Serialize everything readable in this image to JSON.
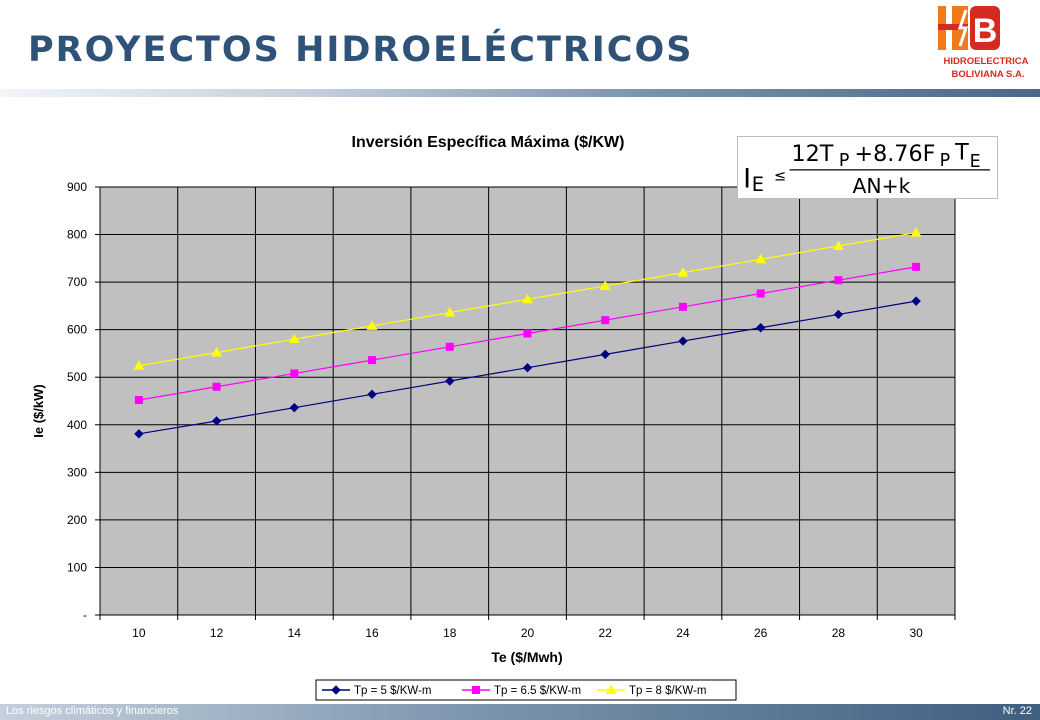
{
  "slide": {
    "title": "PROYECTOS HIDROELÉCTRICOS",
    "logo_text_1": "HIDROELECTRICA",
    "logo_text_2": "BOLIVIANA S.A.",
    "footer_text": "Los riesgos climáticos y financieros",
    "page_number": "Nr. 22"
  },
  "formula": {
    "lhs": "I",
    "lhs_sub": "E",
    "relation": "≤",
    "num_a": "12T",
    "num_a_sub": "P",
    "num_b": "+8.76F",
    "num_b_sub": "P",
    "num_c": "T",
    "num_c_sub": "E",
    "denominator": "AN+k"
  },
  "colors": {
    "title": "#2f5279",
    "plot_background": "#c0c0c0",
    "gridlines": "#000000",
    "series_1": "#000080",
    "series_2": "#ff00ff",
    "series_3": "#ffff00",
    "logo_orange": "#f07a1a",
    "logo_red": "#d42a1f"
  },
  "chart_data": {
    "type": "line",
    "title": "Inversión Específica Máxima ($/KW)",
    "xlabel": "Te ($/Mwh)",
    "ylabel": "Ie ($/kW)",
    "x": [
      10,
      12,
      14,
      16,
      18,
      20,
      22,
      24,
      26,
      28,
      30
    ],
    "x_tick_labels": [
      "10",
      "12",
      "14",
      "16",
      "18",
      "20",
      "22",
      "24",
      "26",
      "28",
      "30"
    ],
    "ylim": [
      0,
      900
    ],
    "y_ticks": [
      0,
      100,
      200,
      300,
      400,
      500,
      600,
      700,
      800,
      900
    ],
    "y_tick_labels": [
      "-",
      "100",
      "200",
      "300",
      "400",
      "500",
      "600",
      "700",
      "800",
      "900"
    ],
    "grid": true,
    "legend_position": "bottom",
    "series": [
      {
        "name": "Tp = 5 $/KW-m",
        "marker": "diamond",
        "color": "#000080",
        "values": [
          381,
          408,
          436,
          464,
          492,
          520,
          548,
          576,
          604,
          632,
          660
        ]
      },
      {
        "name": "Tp = 6.5 $/KW-m",
        "marker": "square",
        "color": "#ff00ff",
        "values": [
          452,
          480,
          508,
          536,
          564,
          592,
          620,
          648,
          676,
          704,
          732
        ]
      },
      {
        "name": "Tp = 8 $/KW-m",
        "marker": "triangle",
        "color": "#ffff00",
        "values": [
          524,
          552,
          580,
          608,
          636,
          664,
          692,
          720,
          748,
          776,
          804
        ]
      }
    ]
  }
}
